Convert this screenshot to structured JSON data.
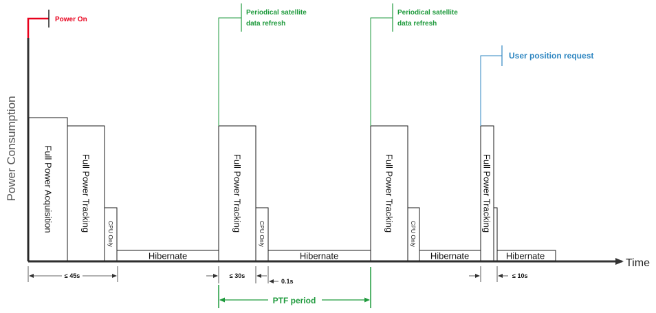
{
  "axis": {
    "ylabel": "Power Consumption",
    "xlabel": "Time"
  },
  "events": {
    "power_on": "Power On",
    "refresh_1_line1": "Periodical satellite",
    "refresh_1_line2": "data refresh",
    "refresh_2_line1": "Periodical satellite",
    "refresh_2_line2": "data refresh",
    "user_request": "User position request"
  },
  "blocks": {
    "full_power_acquisition": "Full Power Acquisition",
    "full_power_tracking_1": "Full Power Tracking",
    "cpu_only_1": "CPU Only",
    "hibernate_1": "Hibernate",
    "full_power_tracking_2": "Full Power Tracking",
    "cpu_only_2": "CPU Only",
    "hibernate_2": "Hibernate",
    "full_power_tracking_3": "Full Power Tracking",
    "cpu_only_3": "CPU Only",
    "hibernate_3": "Hibernate",
    "full_power_tracking_4": "Full Power Tracking",
    "hibernate_4": "Hibernate"
  },
  "dimensions": {
    "startup": "≤ 45s",
    "tracking": "≤ 30s",
    "cpu": "0.1s",
    "ptf": "PTF period",
    "request": "≤ 10s"
  },
  "colors": {
    "power_on": "#e8001c",
    "refresh": "#1e9a3c",
    "user_request": "#2e86c1",
    "axis": "#333333"
  }
}
